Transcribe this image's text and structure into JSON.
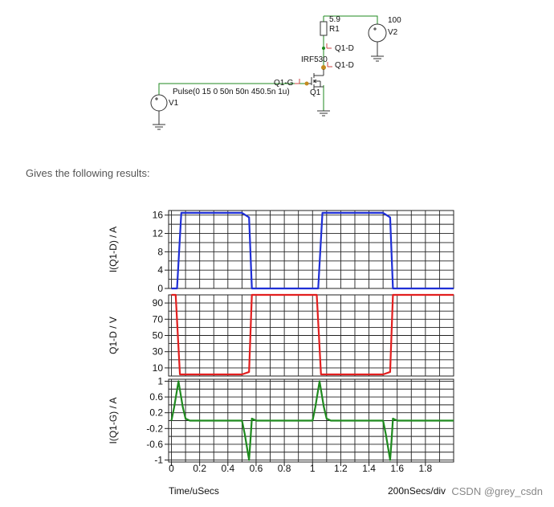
{
  "schematic": {
    "r1_value": "5.9",
    "r1_name": "R1",
    "v2_value": "100",
    "v2_name": "V2",
    "probe_drain_1": "Q1-D",
    "probe_drain_2": "Q1-D",
    "mosfet_model": "IRF530",
    "mosfet_name": "Q1",
    "probe_gate": "Q1-G",
    "pulse_spec": "Pulse(0 15 0 50n 50n 450.5n 1u)",
    "v1_name": "V1"
  },
  "caption": "Gives the following results:",
  "watermark": "CSDN @grey_csdn",
  "chart_data": [
    {
      "type": "line",
      "ylabel": "I(Q1-D) / A",
      "ylim": [
        0,
        17
      ],
      "yticks": [
        0,
        4,
        8,
        12,
        16
      ],
      "ytick_labels": [
        "0",
        "4",
        "8",
        "12",
        "16"
      ],
      "grid": true,
      "series": [
        {
          "color": "#1f2fd6",
          "x": [
            0,
            0.04,
            0.07,
            0.5,
            0.55,
            0.57,
            0.9,
            1.0,
            1.04,
            1.07,
            1.5,
            1.55,
            1.57,
            2.0
          ],
          "y": [
            0,
            0,
            16.5,
            16.5,
            15.5,
            0,
            0,
            0,
            0,
            16.5,
            16.5,
            15.5,
            0,
            0
          ]
        }
      ]
    },
    {
      "type": "line",
      "ylabel": "Q1-D / V",
      "ylim": [
        0,
        100
      ],
      "yticks": [
        10,
        30,
        50,
        70,
        90
      ],
      "ytick_labels": [
        "10",
        "30",
        "50",
        "70",
        "90"
      ],
      "grid": true,
      "series": [
        {
          "color": "#e21f1f",
          "x": [
            0,
            0.03,
            0.06,
            0.5,
            0.55,
            0.57,
            1.0,
            1.03,
            1.06,
            1.5,
            1.55,
            1.57,
            2.0
          ],
          "y": [
            100,
            100,
            2,
            2,
            5,
            100,
            100,
            100,
            2,
            2,
            5,
            100,
            100
          ]
        }
      ]
    },
    {
      "type": "line",
      "ylabel": "I(Q1-G) / A",
      "ylim": [
        -1.05,
        1.05
      ],
      "yticks": [
        -1,
        -0.6,
        -0.2,
        0.2,
        0.6,
        1
      ],
      "ytick_labels": [
        "-1",
        "-0.6",
        "-0.2",
        "0.2",
        "0.6",
        "1"
      ],
      "grid": true,
      "xlim": [
        -0.02,
        2.0
      ],
      "xticks": [
        0,
        0.2,
        0.4,
        0.6,
        0.8,
        1,
        1.2,
        1.4,
        1.6,
        1.8
      ],
      "xtick_labels": [
        "0",
        "0.2",
        "0.4",
        "0.6",
        "0.8",
        "1",
        "1.2",
        "1.4",
        "1.6",
        "1.8"
      ],
      "xlabel": "Time/uSecs",
      "x_scale_label": "200nSecs/div",
      "series": [
        {
          "color": "#1f8a1f",
          "x": [
            0,
            0.02,
            0.05,
            0.08,
            0.1,
            0.13,
            0.5,
            0.52,
            0.55,
            0.56,
            0.57,
            0.6,
            1.0,
            1.02,
            1.05,
            1.08,
            1.1,
            1.13,
            1.5,
            1.52,
            1.55,
            1.56,
            1.57,
            1.6,
            2.0
          ],
          "y": [
            0,
            0.35,
            1.0,
            0.35,
            0.05,
            0,
            0,
            -0.35,
            -1.0,
            -0.5,
            0.05,
            0,
            0,
            0.35,
            1.0,
            0.35,
            0.05,
            0,
            0,
            -0.35,
            -1.0,
            -0.5,
            0.05,
            0,
            0
          ]
        }
      ]
    }
  ]
}
